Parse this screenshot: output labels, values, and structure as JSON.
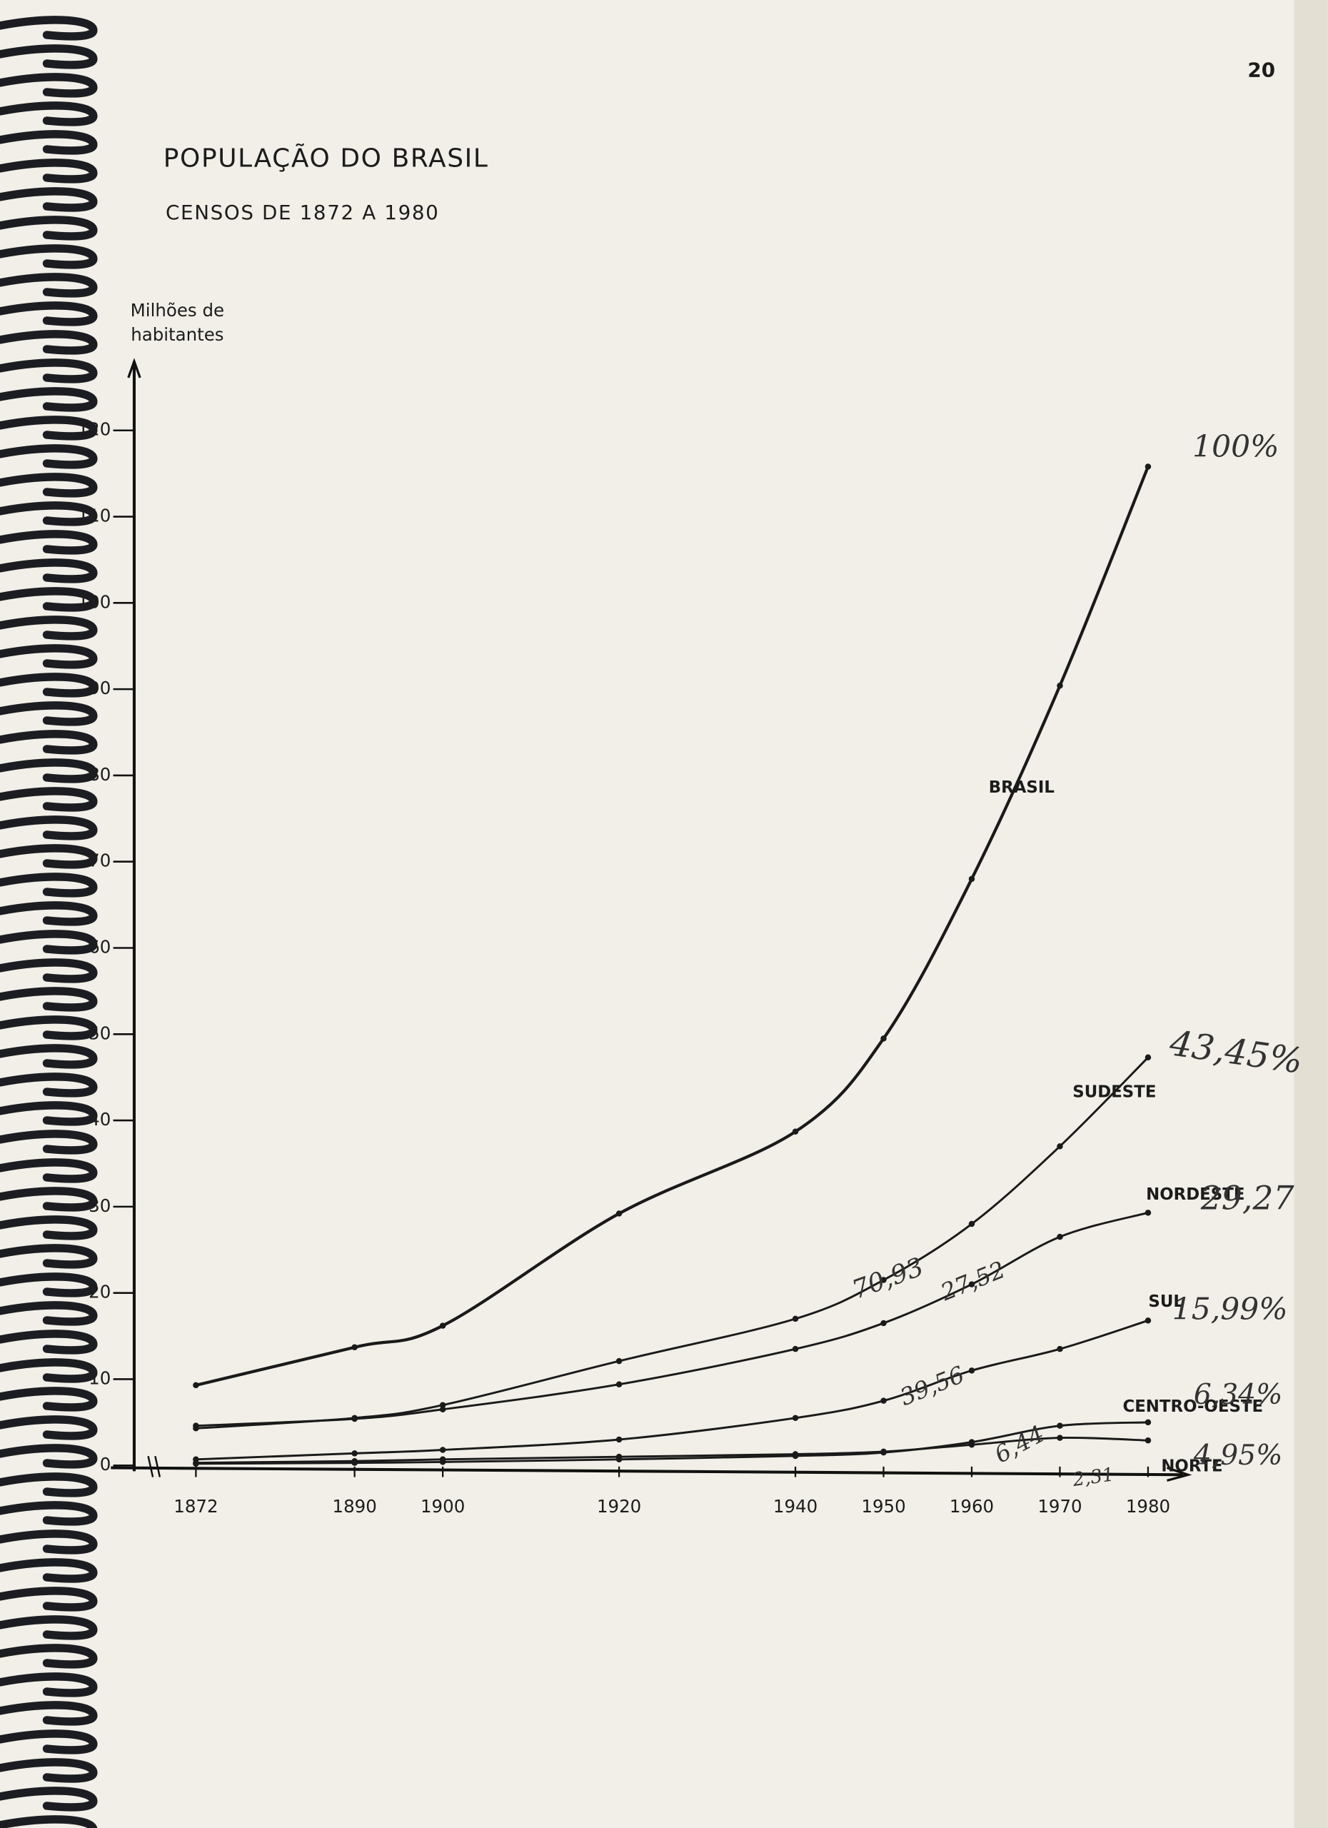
{
  "page_number": "20",
  "chart_data": {
    "type": "line",
    "title": "POPULAÇÃO DO BRASIL",
    "subtitle": "CENSOS DE 1872 A 1980",
    "y_label": [
      "Milhões de",
      "habitantes"
    ],
    "x": [
      1872,
      1890,
      1900,
      1920,
      1940,
      1950,
      1960,
      1970,
      1980
    ],
    "xlim": [
      1865,
      1984
    ],
    "xticks": [
      1872,
      1890,
      1900,
      1920,
      1940,
      1950,
      1960,
      1970,
      1980
    ],
    "ylim": [
      0,
      128
    ],
    "yticks": [
      0,
      10,
      20,
      30,
      40,
      50,
      60,
      70,
      80,
      90,
      100,
      110,
      120
    ],
    "grid": false,
    "series": [
      {
        "name": "BRASIL",
        "color": "#1a1a1a",
        "values": [
          9.3,
          13.7,
          16.2,
          29.2,
          38.7,
          49.5,
          68,
          90.4,
          115.8
        ]
      },
      {
        "name": "SUDESTE",
        "color": "#1a1a1a",
        "values": [
          4.3,
          5.5,
          7,
          12.1,
          17,
          21.5,
          28,
          37,
          47.3
        ]
      },
      {
        "name": "NORDESTE",
        "color": "#1a1a1a",
        "values": [
          4.6,
          5.4,
          6.5,
          9.4,
          13.5,
          16.5,
          21,
          26.5,
          29.3
        ]
      },
      {
        "name": "SUL",
        "color": "#1a1a1a",
        "values": [
          0.7,
          1.4,
          1.8,
          3.0,
          5.5,
          7.5,
          11,
          13.5,
          16.8
        ]
      },
      {
        "name": "CENTRO-OESTE",
        "color": "#1a1a1a",
        "values": [
          0.2,
          0.3,
          0.4,
          0.7,
          1.1,
          1.5,
          2.7,
          4.6,
          5
        ]
      },
      {
        "name": "NORTE",
        "color": "#1a1a1a",
        "values": [
          0.3,
          0.5,
          0.7,
          1.0,
          1.3,
          1.6,
          2.4,
          3.2,
          2.9
        ]
      }
    ],
    "annotations": [
      "100%",
      "43,45%",
      "29,27",
      "15,99%",
      "6,34%",
      "4,95%",
      "70,93",
      "27,52",
      "39,56",
      "6,44",
      "2,31"
    ]
  }
}
